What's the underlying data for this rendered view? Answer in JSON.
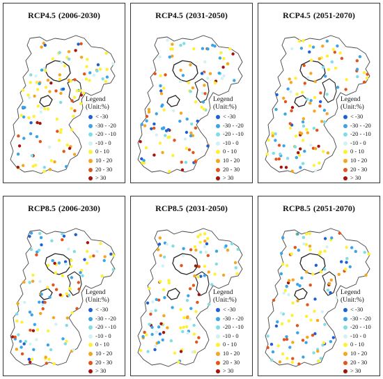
{
  "legend_title_line1": "Legend",
  "legend_title_line2": "(Unit:%)",
  "legend_classes": [
    {
      "label": "< -30",
      "color": "#1f5fd6"
    },
    {
      "label": "-30 - -20",
      "color": "#3aa4e6"
    },
    {
      "label": "-20 - -10",
      "color": "#7fdde6"
    },
    {
      "label": "-10 - 0",
      "color": "#d2f1f5"
    },
    {
      "label": "0 - 10",
      "color": "#fff033"
    },
    {
      "label": "10 - 20",
      "color": "#f6a51e"
    },
    {
      "label": "20 - 30",
      "color": "#e4541a"
    },
    {
      "label": "> 30",
      "color": "#a4140c"
    }
  ],
  "panels": [
    {
      "scenario": "RCP4.5",
      "period": "(2006-2030)"
    },
    {
      "scenario": "RCP4.5",
      "period": "(2031-2050)"
    },
    {
      "scenario": "RCP4.5",
      "period": "(2051-2070)"
    },
    {
      "scenario": "RCP8.5",
      "period": "(2006-2030)"
    },
    {
      "scenario": "RCP8.5",
      "period": "(2031-2050)"
    },
    {
      "scenario": "RCP8.5",
      "period": "(2051-2070)"
    }
  ]
}
